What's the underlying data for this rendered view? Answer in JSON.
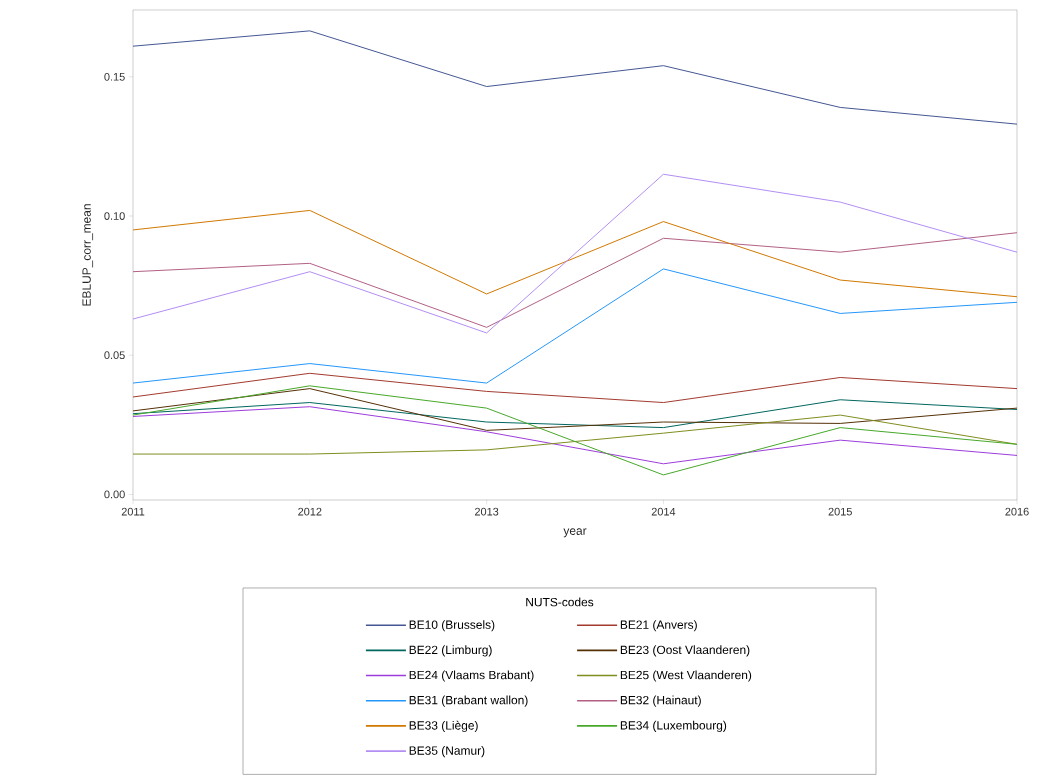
{
  "chart_data": {
    "type": "line",
    "xlabel": "year",
    "ylabel": "EBLUP_corr_mean",
    "legend_title": "NUTS-codes",
    "legend": "bottom",
    "marker": "none",
    "line_style": "solid",
    "x": [
      2011,
      2012,
      2013,
      2014,
      2015,
      2016
    ],
    "xlim": [
      2011,
      2016
    ],
    "xticks": [
      2011,
      2012,
      2013,
      2014,
      2015,
      2016
    ],
    "ylim": [
      -0.002,
      0.174
    ],
    "yticks": [
      {
        "value": 0,
        "label": "0.00"
      },
      0.05,
      {
        "value": 0.1,
        "label": "0.10"
      },
      0.15
    ],
    "series": [
      {
        "name": "BE10 (Brussels)",
        "color": "#445694",
        "values": [
          0.161,
          0.1665,
          0.1465,
          0.154,
          0.139,
          0.133
        ]
      },
      {
        "name": "BE21 (Anvers)",
        "color": "#a23a2e",
        "values": [
          0.035,
          0.0435,
          0.037,
          0.033,
          0.042,
          0.038
        ]
      },
      {
        "name": "BE22 (Limburg)",
        "color": "#01665e",
        "values": [
          0.029,
          0.033,
          0.026,
          0.024,
          0.034,
          0.0305
        ]
      },
      {
        "name": "BE23 (Oost Vlaanderen)",
        "color": "#543005",
        "values": [
          0.03,
          0.038,
          0.023,
          0.026,
          0.0255,
          0.031
        ]
      },
      {
        "name": "BE24 (Vlaams Brabant)",
        "color": "#9d3cdb",
        "values": [
          0.028,
          0.0315,
          0.0225,
          0.011,
          0.0195,
          0.014
        ]
      },
      {
        "name": "BE25 (West Vlaanderen)",
        "color": "#7f8e1f",
        "values": [
          0.0145,
          0.0145,
          0.016,
          0.022,
          0.0285,
          0.018
        ]
      },
      {
        "name": "BE31 (Brabant wallon)",
        "color": "#2597fa",
        "values": [
          0.04,
          0.047,
          0.04,
          0.081,
          0.065,
          0.069
        ]
      },
      {
        "name": "BE32 (Hainaut)",
        "color": "#b26084",
        "values": [
          0.08,
          0.083,
          0.06,
          0.092,
          0.087,
          0.094
        ]
      },
      {
        "name": "BE33 (Liège)",
        "color": "#d17800",
        "values": [
          0.095,
          0.102,
          0.072,
          0.098,
          0.077,
          0.071
        ]
      },
      {
        "name": "BE34 (Luxembourg)",
        "color": "#47a82a",
        "values": [
          0.0285,
          0.039,
          0.031,
          0.007,
          0.024,
          0.018
        ]
      },
      {
        "name": "BE35 (Namur)",
        "color": "#b38ef3",
        "values": [
          0.063,
          0.08,
          0.058,
          0.115,
          0.105,
          0.087
        ]
      }
    ]
  }
}
